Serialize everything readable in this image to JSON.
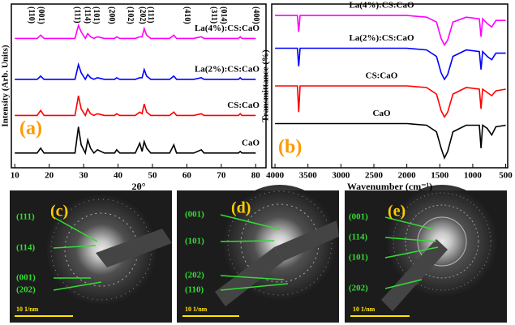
{
  "chart_data": [
    {
      "type": "line",
      "panel_label": "(a)",
      "x_label": "2θ°",
      "y_label": "Intensity (Arb. Units)",
      "xlim": [
        9,
        83
      ],
      "ylim": [
        0,
        100
      ],
      "xticks": [
        10,
        20,
        30,
        40,
        50,
        60,
        70,
        80
      ],
      "x": [
        10,
        15,
        16.5,
        17.5,
        18.5,
        20,
        25,
        27.5,
        28.5,
        29.3,
        30.5,
        31.2,
        32,
        33,
        34,
        36,
        39,
        39.6,
        40.5,
        45,
        46.3,
        47,
        47.6,
        48.3,
        49.5,
        55,
        56.2,
        57,
        62,
        64.2,
        65,
        70,
        75,
        75.5,
        76,
        80
      ],
      "series": [
        {
          "name": "CaO",
          "color": "#000000",
          "values": [
            9,
            9,
            9,
            12,
            9,
            9,
            9,
            9,
            25,
            14,
            9,
            17,
            12,
            9,
            11,
            9,
            9,
            11,
            9,
            9,
            15,
            10,
            16,
            12,
            9,
            9,
            14,
            9,
            9,
            11,
            9,
            9,
            9,
            10,
            9,
            9
          ]
        },
        {
          "name": "CS:CaO",
          "color": "#ff0000",
          "values": [
            32,
            32,
            32,
            35,
            32,
            32,
            32,
            32,
            44,
            36,
            32,
            36,
            33,
            32,
            33,
            32,
            32,
            33,
            32,
            32,
            34,
            33,
            39,
            34,
            32,
            32,
            34,
            32,
            32,
            33,
            32,
            32,
            32,
            33,
            32,
            32
          ]
        },
        {
          "name": "La(2%):CS:CaO",
          "color": "#0000ff",
          "values": [
            54,
            54,
            54,
            56,
            54,
            54,
            54,
            54,
            63,
            58,
            54,
            57,
            55,
            54,
            55,
            54,
            54,
            55,
            54,
            54,
            55,
            55,
            60,
            56,
            54,
            54,
            56,
            54,
            54,
            55,
            54,
            54,
            54,
            55,
            54,
            54
          ]
        },
        {
          "name": "La(4%):CS:CaO",
          "color": "#ff00ff",
          "values": [
            79,
            79,
            79,
            81,
            79,
            79,
            79,
            79,
            87,
            83,
            79,
            82,
            80,
            79,
            80,
            79,
            79,
            80,
            79,
            79,
            80,
            80,
            85,
            81,
            79,
            79,
            81,
            79,
            79,
            80,
            79,
            79,
            79,
            80,
            79,
            79
          ]
        }
      ],
      "annotations": [
        {
          "text": "(110)",
          "x": 14.7
        },
        {
          "text": "(001)",
          "x": 17.5
        },
        {
          "text": "(111)",
          "x": 28
        },
        {
          "text": "(114)",
          "x": 31
        },
        {
          "text": "(101)",
          "x": 33.6
        },
        {
          "text": "(200)",
          "x": 38
        },
        {
          "text": "(102)",
          "x": 43.5
        },
        {
          "text": "(202)",
          "x": 47
        },
        {
          "text": "(111)",
          "x": 49.4
        },
        {
          "text": "(410)",
          "x": 60
        },
        {
          "text": "(311)",
          "x": 67.7
        },
        {
          "text": "(014)",
          "x": 70.6
        },
        {
          "text": "(400)",
          "x": 80
        }
      ]
    },
    {
      "type": "line",
      "panel_label": "(b)",
      "x_label": "Wavenumber (cm⁻¹)",
      "y_label": "Transmittance (%)",
      "xlim": [
        4050,
        470
      ],
      "ylim": [
        0,
        100
      ],
      "xticks": [
        4000,
        3500,
        3000,
        2500,
        2000,
        1500,
        1000,
        500
      ],
      "x": [
        4000,
        3700,
        3660,
        3640,
        3620,
        3500,
        3000,
        2500,
        2000,
        1700,
        1550,
        1480,
        1430,
        1380,
        1300,
        1100,
        900,
        875,
        850,
        780,
        712,
        650,
        500
      ],
      "series": [
        {
          "name": "CaO",
          "color": "#000000",
          "values": [
            27,
            27,
            27,
            27,
            27,
            27,
            27,
            27,
            27,
            26,
            22,
            12,
            6,
            10,
            22,
            26,
            26,
            12,
            26,
            24,
            20,
            25,
            26
          ]
        },
        {
          "name": "CS:CaO",
          "color": "#ff0000",
          "values": [
            50,
            50,
            50,
            34,
            50,
            50,
            50,
            50,
            50,
            49,
            45,
            35,
            31,
            34,
            45,
            49,
            48,
            36,
            48,
            46,
            44,
            47,
            48
          ]
        },
        {
          "name": "La(2%):CS:CaO",
          "color": "#0000ff",
          "values": [
            73,
            73,
            73,
            62,
            73,
            73,
            73,
            73,
            73,
            72,
            68,
            58,
            54,
            57,
            68,
            72,
            71,
            60,
            71,
            68,
            66,
            70,
            70
          ]
        },
        {
          "name": "La(4%):CS:CaO",
          "color": "#ff00ff",
          "values": [
            93,
            93,
            93,
            83,
            93,
            93,
            93,
            93,
            93,
            92,
            89,
            79,
            75,
            78,
            89,
            92,
            91,
            80,
            91,
            88,
            86,
            90,
            90
          ]
        }
      ]
    }
  ],
  "images": [
    {
      "label": "(c)",
      "annotations": [
        "(111)",
        "(114)",
        "(001)",
        "(202)"
      ],
      "scale": "10 1/nm"
    },
    {
      "label": "(d)",
      "annotations": [
        "(001)",
        "(101)",
        "(202)",
        "(110)"
      ],
      "scale": "10 1/nm"
    },
    {
      "label": "(e)",
      "annotations": [
        "(001)",
        "(114)",
        "(101)",
        "(202)"
      ],
      "scale": "10 1/nm"
    }
  ]
}
